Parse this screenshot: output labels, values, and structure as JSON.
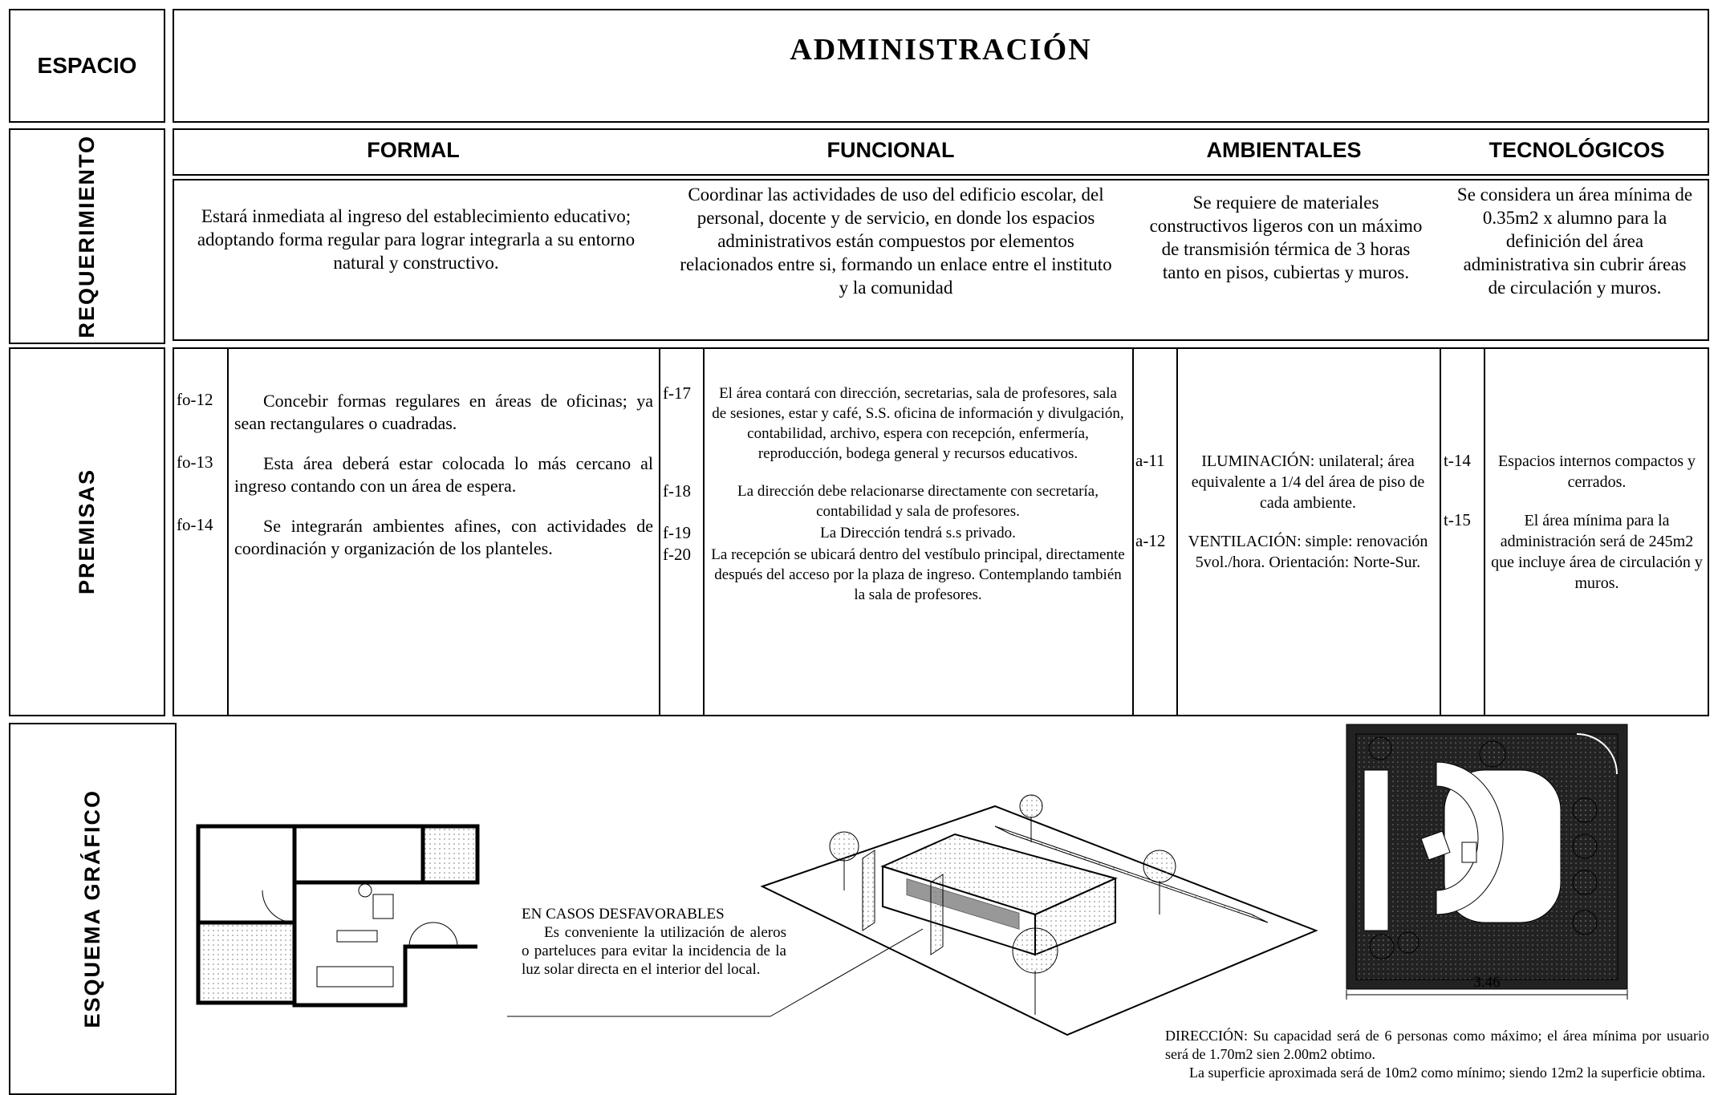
{
  "header": {
    "label": "ESPACIO",
    "title": "ADMINISTRACIÓN"
  },
  "requirements": {
    "label": "REQUERIMIENTO",
    "columns": [
      {
        "heading": "FORMAL",
        "text": "Estará inmediata al ingreso del establecimiento educativo; adoptando forma regular para lograr integrarla a su entorno natural y constructivo."
      },
      {
        "heading": "FUNCIONAL",
        "text": "Coordinar las actividades de uso del edificio escolar, del personal, docente y de servicio, en donde los espacios administrativos están compuestos por elementos relacionados entre si, formando un enlace entre el instituto y la comunidad"
      },
      {
        "heading": "AMBIENTALES",
        "text": "Se requiere de materiales constructivos ligeros con un máximo de transmisión térmica de 3 horas tanto en pisos, cubiertas y muros."
      },
      {
        "heading": "TECNOLÓGICOS",
        "text": "Se considera un área mínima de 0.35m2 x alumno para la definición del área administrativa  sin cubrir áreas de circulación y muros."
      }
    ]
  },
  "premises": {
    "label": "PREMISAS",
    "groups": [
      {
        "items": [
          {
            "code": "fo-12",
            "text": "Concebir formas regulares en áreas de oficinas; ya sean rectangulares o cuadradas."
          },
          {
            "code": "fo-13",
            "text": "Esta área deberá estar colocada lo más cercano al ingreso contando con un área de espera."
          },
          {
            "code": "fo-14",
            "text": "Se integrarán ambientes afines, con actividades de coordinación y organización de los planteles."
          }
        ]
      },
      {
        "items": [
          {
            "code": "f-17",
            "text": "El área contará con dirección, secretarias, sala de profesores, sala de sesiones, estar y café, S.S. oficina de información y divulgación, contabilidad, archivo, espera con recepción, enfermería, reproducción, bodega general y recursos educativos."
          },
          {
            "code": "f-18",
            "text": "La dirección debe relacionarse directamente con secretaría, contabilidad y sala de profesores."
          },
          {
            "code": "f-19",
            "text": "La Dirección tendrá s.s privado."
          },
          {
            "code": "f-20",
            "text": "La recepción se ubicará dentro del vestíbulo principal, directamente después del acceso por la plaza de ingreso.  Contemplando también la sala de profesores."
          }
        ]
      },
      {
        "items": [
          {
            "code": "a-11",
            "text": "ILUMINACIÓN: unilateral; área equivalente a 1/4 del área de piso de cada ambiente."
          },
          {
            "code": "a-12",
            "text": "VENTILACIÓN: simple: renovación 5vol./hora. Orientación: Norte-Sur."
          }
        ]
      },
      {
        "items": [
          {
            "code": "t-14",
            "text": "Espacios internos compactos y cerrados."
          },
          {
            "code": "t-15",
            "text": "El área mínima para la administración será de 245m2 que incluye área de circulación y muros."
          }
        ]
      }
    ]
  },
  "graphic": {
    "label": "ESQUEMA GRÁFICO",
    "note_title": "EN CASOS DESFAVORABLES",
    "note_text": "Es conveniente la utilización de aleros o parteluces para evitar la incidencia de la luz solar directa en el interior del local.",
    "dimension": "3.46",
    "caption": "DIRECCIÓN: Su capacidad será de 6 personas como máximo; el área mínima por usuario será de 1.70m2 sien 2.00m2 obtimo.",
    "caption_2": "La superficie aproximada será de 10m2 como mínimo; siendo 12m2 la superficie obtima."
  }
}
